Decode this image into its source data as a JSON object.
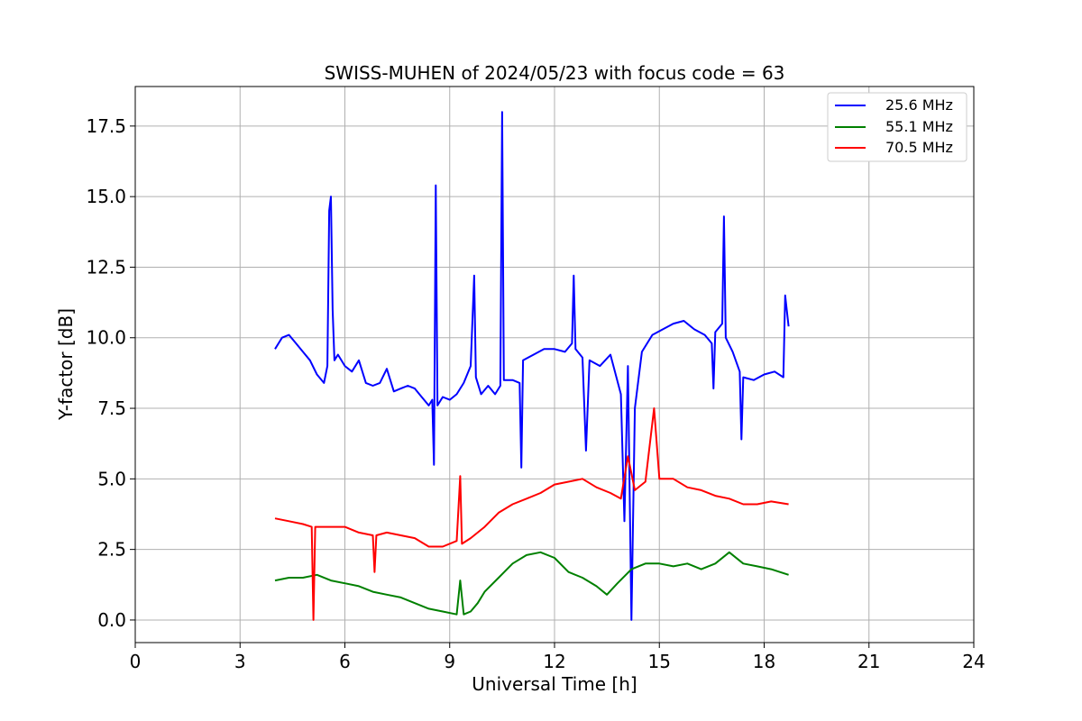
{
  "chart_data": {
    "type": "line",
    "title": "SWISS-MUHEN of 2024/05/23 with focus code = 63",
    "xlabel": "Universal Time [h]",
    "ylabel": "Y-factor [dB]",
    "xlim": [
      0,
      24
    ],
    "ylim": [
      -0.8,
      18.9
    ],
    "x_ticks": [
      0,
      3,
      6,
      9,
      12,
      15,
      18,
      21,
      24
    ],
    "x_tick_labels": [
      "0",
      "3",
      "6",
      "9",
      "12",
      "15",
      "18",
      "21",
      "24"
    ],
    "y_ticks": [
      0,
      2.5,
      5,
      7.5,
      10,
      12.5,
      15,
      17.5
    ],
    "y_tick_labels": [
      "0.0",
      "2.5",
      "5.0",
      "7.5",
      "10.0",
      "12.5",
      "15.0",
      "17.5"
    ],
    "grid": true,
    "legend_position": "top-right",
    "series": [
      {
        "name": "25.6 MHz",
        "color": "#0000ff",
        "points": [
          [
            4.0,
            9.6
          ],
          [
            4.2,
            10.0
          ],
          [
            4.4,
            10.1
          ],
          [
            4.6,
            9.8
          ],
          [
            4.8,
            9.5
          ],
          [
            5.0,
            9.2
          ],
          [
            5.2,
            8.7
          ],
          [
            5.4,
            8.4
          ],
          [
            5.5,
            9.0
          ],
          [
            5.55,
            14.5
          ],
          [
            5.6,
            15.0
          ],
          [
            5.65,
            11.0
          ],
          [
            5.7,
            9.2
          ],
          [
            5.8,
            9.4
          ],
          [
            6.0,
            9.0
          ],
          [
            6.2,
            8.8
          ],
          [
            6.4,
            9.2
          ],
          [
            6.6,
            8.4
          ],
          [
            6.8,
            8.3
          ],
          [
            7.0,
            8.4
          ],
          [
            7.2,
            8.9
          ],
          [
            7.4,
            8.1
          ],
          [
            7.6,
            8.2
          ],
          [
            7.8,
            8.3
          ],
          [
            8.0,
            8.2
          ],
          [
            8.2,
            7.9
          ],
          [
            8.4,
            7.6
          ],
          [
            8.5,
            7.8
          ],
          [
            8.55,
            5.5
          ],
          [
            8.6,
            15.4
          ],
          [
            8.65,
            7.6
          ],
          [
            8.8,
            7.9
          ],
          [
            9.0,
            7.8
          ],
          [
            9.2,
            8.0
          ],
          [
            9.4,
            8.4
          ],
          [
            9.6,
            9.0
          ],
          [
            9.7,
            12.2
          ],
          [
            9.75,
            8.6
          ],
          [
            9.9,
            8.0
          ],
          [
            10.1,
            8.3
          ],
          [
            10.3,
            8.0
          ],
          [
            10.45,
            8.3
          ],
          [
            10.5,
            18.0
          ],
          [
            10.55,
            8.5
          ],
          [
            10.8,
            8.5
          ],
          [
            11.0,
            8.4
          ],
          [
            11.05,
            5.4
          ],
          [
            11.1,
            9.2
          ],
          [
            11.4,
            9.4
          ],
          [
            11.7,
            9.6
          ],
          [
            12.0,
            9.6
          ],
          [
            12.3,
            9.5
          ],
          [
            12.5,
            9.8
          ],
          [
            12.55,
            12.2
          ],
          [
            12.6,
            9.6
          ],
          [
            12.8,
            9.3
          ],
          [
            12.9,
            6.0
          ],
          [
            13.0,
            9.2
          ],
          [
            13.3,
            9.0
          ],
          [
            13.6,
            9.4
          ],
          [
            13.9,
            8.0
          ],
          [
            14.0,
            3.5
          ],
          [
            14.1,
            9.0
          ],
          [
            14.2,
            0.0
          ],
          [
            14.3,
            7.5
          ],
          [
            14.5,
            9.5
          ],
          [
            14.8,
            10.1
          ],
          [
            15.1,
            10.3
          ],
          [
            15.4,
            10.5
          ],
          [
            15.7,
            10.6
          ],
          [
            16.0,
            10.3
          ],
          [
            16.3,
            10.1
          ],
          [
            16.5,
            9.8
          ],
          [
            16.55,
            8.2
          ],
          [
            16.6,
            10.2
          ],
          [
            16.8,
            10.5
          ],
          [
            16.85,
            14.3
          ],
          [
            16.9,
            10.0
          ],
          [
            17.1,
            9.5
          ],
          [
            17.3,
            8.8
          ],
          [
            17.35,
            6.4
          ],
          [
            17.4,
            8.6
          ],
          [
            17.7,
            8.5
          ],
          [
            18.0,
            8.7
          ],
          [
            18.3,
            8.8
          ],
          [
            18.55,
            8.6
          ],
          [
            18.6,
            11.5
          ],
          [
            18.7,
            10.4
          ]
        ]
      },
      {
        "name": "55.1 MHz",
        "color": "#008000",
        "points": [
          [
            4.0,
            1.4
          ],
          [
            4.4,
            1.5
          ],
          [
            4.8,
            1.5
          ],
          [
            5.2,
            1.6
          ],
          [
            5.6,
            1.4
          ],
          [
            6.0,
            1.3
          ],
          [
            6.4,
            1.2
          ],
          [
            6.8,
            1.0
          ],
          [
            7.2,
            0.9
          ],
          [
            7.6,
            0.8
          ],
          [
            8.0,
            0.6
          ],
          [
            8.4,
            0.4
          ],
          [
            8.8,
            0.3
          ],
          [
            9.2,
            0.2
          ],
          [
            9.3,
            1.4
          ],
          [
            9.4,
            0.2
          ],
          [
            9.6,
            0.3
          ],
          [
            9.8,
            0.6
          ],
          [
            10.0,
            1.0
          ],
          [
            10.4,
            1.5
          ],
          [
            10.8,
            2.0
          ],
          [
            11.2,
            2.3
          ],
          [
            11.6,
            2.4
          ],
          [
            12.0,
            2.2
          ],
          [
            12.4,
            1.7
          ],
          [
            12.8,
            1.5
          ],
          [
            13.2,
            1.2
          ],
          [
            13.5,
            0.9
          ],
          [
            13.8,
            1.3
          ],
          [
            14.2,
            1.8
          ],
          [
            14.6,
            2.0
          ],
          [
            15.0,
            2.0
          ],
          [
            15.4,
            1.9
          ],
          [
            15.8,
            2.0
          ],
          [
            16.2,
            1.8
          ],
          [
            16.6,
            2.0
          ],
          [
            17.0,
            2.4
          ],
          [
            17.4,
            2.0
          ],
          [
            17.8,
            1.9
          ],
          [
            18.2,
            1.8
          ],
          [
            18.7,
            1.6
          ]
        ]
      },
      {
        "name": "70.5 MHz",
        "color": "#ff0000",
        "points": [
          [
            4.0,
            3.6
          ],
          [
            4.4,
            3.5
          ],
          [
            4.8,
            3.4
          ],
          [
            5.05,
            3.3
          ],
          [
            5.1,
            0.0
          ],
          [
            5.15,
            3.3
          ],
          [
            5.6,
            3.3
          ],
          [
            6.0,
            3.3
          ],
          [
            6.4,
            3.1
          ],
          [
            6.8,
            3.0
          ],
          [
            6.85,
            1.7
          ],
          [
            6.9,
            3.0
          ],
          [
            7.2,
            3.1
          ],
          [
            7.6,
            3.0
          ],
          [
            8.0,
            2.9
          ],
          [
            8.4,
            2.6
          ],
          [
            8.8,
            2.6
          ],
          [
            9.2,
            2.8
          ],
          [
            9.3,
            5.1
          ],
          [
            9.35,
            2.7
          ],
          [
            9.6,
            2.9
          ],
          [
            10.0,
            3.3
          ],
          [
            10.4,
            3.8
          ],
          [
            10.8,
            4.1
          ],
          [
            11.2,
            4.3
          ],
          [
            11.6,
            4.5
          ],
          [
            12.0,
            4.8
          ],
          [
            12.4,
            4.9
          ],
          [
            12.8,
            5.0
          ],
          [
            13.2,
            4.7
          ],
          [
            13.6,
            4.5
          ],
          [
            13.9,
            4.3
          ],
          [
            14.1,
            5.8
          ],
          [
            14.3,
            4.6
          ],
          [
            14.6,
            4.9
          ],
          [
            14.85,
            7.5
          ],
          [
            15.0,
            5.0
          ],
          [
            15.4,
            5.0
          ],
          [
            15.8,
            4.7
          ],
          [
            16.2,
            4.6
          ],
          [
            16.6,
            4.4
          ],
          [
            17.0,
            4.3
          ],
          [
            17.4,
            4.1
          ],
          [
            17.8,
            4.1
          ],
          [
            18.2,
            4.2
          ],
          [
            18.7,
            4.1
          ]
        ]
      }
    ]
  }
}
